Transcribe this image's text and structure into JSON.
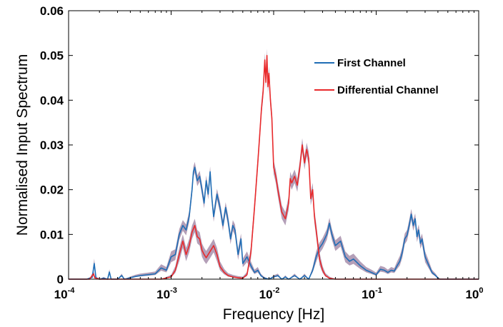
{
  "chart_data": {
    "type": "line",
    "title": "",
    "xlabel": "Frequency [Hz]",
    "ylabel": "Normalised Input Spectrum",
    "xscale": "log",
    "xlim": [
      0.0001,
      1
    ],
    "ylim": [
      0,
      0.06
    ],
    "grid": false,
    "legend_placement": "top-right",
    "x_ticks": [
      {
        "base": "10",
        "exp": "-4"
      },
      {
        "base": "10",
        "exp": "-3"
      },
      {
        "base": "10",
        "exp": "-2"
      },
      {
        "base": "10",
        "exp": "-1"
      },
      {
        "base": "10",
        "exp": "0"
      }
    ],
    "y_ticks": [
      "0",
      "0.01",
      "0.02",
      "0.03",
      "0.04",
      "0.05",
      "0.06"
    ],
    "band_color": "#9b7fa0",
    "series": [
      {
        "name": "First Channel",
        "color": "#1f6db5",
        "band_halfwidth": 0.0012,
        "x": [
          0.0001,
          0.00015,
          0.00017,
          0.000178,
          0.000185,
          0.0002,
          0.00022,
          0.00024,
          0.00025,
          0.00026,
          0.0003,
          0.00033,
          0.00035,
          0.0004,
          0.00045,
          0.0005,
          0.0006,
          0.0007,
          0.0008,
          0.0009,
          0.001,
          0.0011,
          0.0012,
          0.0013,
          0.0014,
          0.0015,
          0.0016,
          0.00165,
          0.0017,
          0.0018,
          0.0019,
          0.002,
          0.0021,
          0.0022,
          0.0023,
          0.0024,
          0.0025,
          0.0026,
          0.0028,
          0.003,
          0.0032,
          0.0034,
          0.0036,
          0.0038,
          0.004,
          0.0042,
          0.0045,
          0.0048,
          0.005,
          0.0055,
          0.006,
          0.0065,
          0.007,
          0.0075,
          0.008,
          0.009,
          0.01,
          0.011,
          0.012,
          0.013,
          0.014,
          0.016,
          0.018,
          0.02,
          0.022,
          0.024,
          0.026,
          0.028,
          0.03,
          0.033,
          0.035,
          0.037,
          0.04,
          0.045,
          0.05,
          0.055,
          0.06,
          0.07,
          0.08,
          0.09,
          0.1,
          0.11,
          0.12,
          0.13,
          0.14,
          0.15,
          0.16,
          0.17,
          0.18,
          0.19,
          0.2,
          0.21,
          0.22,
          0.23,
          0.24,
          0.25,
          0.26,
          0.27,
          0.28,
          0.3,
          0.32,
          0.35,
          0.38,
          0.4,
          0.42,
          0.45,
          0.5,
          0.6,
          1
        ],
        "y": [
          0,
          0,
          0.0004,
          0.0035,
          0.0003,
          0,
          0.0002,
          0,
          0.0016,
          0,
          0,
          0.0008,
          0,
          0.0003,
          0.0006,
          0.0008,
          0.001,
          0.0012,
          0.0025,
          0.002,
          0.005,
          0.0055,
          0.01,
          0.012,
          0.011,
          0.014,
          0.02,
          0.024,
          0.025,
          0.022,
          0.023,
          0.02,
          0.017,
          0.022,
          0.019,
          0.024,
          0.018,
          0.014,
          0.019,
          0.016,
          0.012,
          0.016,
          0.013,
          0.009,
          0.012,
          0.011,
          0.0055,
          0.009,
          0.0035,
          0.005,
          0.003,
          0.0015,
          0.002,
          0.0008,
          0.0003,
          0,
          0.0005,
          0.0008,
          0,
          0.0005,
          0,
          0.0008,
          0,
          0.0008,
          0,
          0.002,
          0.005,
          0.007,
          0.008,
          0.01,
          0.0125,
          0.01,
          0.0075,
          0.0085,
          0.005,
          0.004,
          0.0045,
          0.003,
          0.002,
          0.0015,
          0.001,
          0.0022,
          0.002,
          0.0015,
          0.002,
          0.0018,
          0.003,
          0.004,
          0.006,
          0.009,
          0.0098,
          0.012,
          0.0145,
          0.012,
          0.0135,
          0.0095,
          0.011,
          0.008,
          0.009,
          0.005,
          0.0035,
          0.0015,
          0.0008,
          0.0002,
          0,
          0,
          0,
          0,
          0
        ]
      },
      {
        "name": "Differential Channel",
        "color": "#e8292b",
        "band_halfwidth": 0.0015,
        "x": [
          0.0001,
          0.00016,
          0.00017,
          0.000175,
          0.00018,
          0.0002,
          0.0008,
          0.001,
          0.0011,
          0.0012,
          0.0013,
          0.0014,
          0.0015,
          0.0016,
          0.0017,
          0.0018,
          0.0019,
          0.002,
          0.0021,
          0.0022,
          0.0024,
          0.0026,
          0.0028,
          0.003,
          0.0033,
          0.0036,
          0.004,
          0.0045,
          0.005,
          0.0055,
          0.006,
          0.0065,
          0.007,
          0.0073,
          0.0076,
          0.0079,
          0.0082,
          0.0084,
          0.0086,
          0.0088,
          0.009,
          0.0093,
          0.0096,
          0.01,
          0.0105,
          0.011,
          0.012,
          0.013,
          0.014,
          0.0145,
          0.015,
          0.016,
          0.017,
          0.018,
          0.019,
          0.02,
          0.021,
          0.022,
          0.023,
          0.024,
          0.025,
          0.026,
          0.028,
          0.03,
          0.032,
          0.035,
          0.04,
          0.05,
          1
        ],
        "y": [
          0,
          0,
          0.0008,
          0.0012,
          0.0003,
          0,
          0,
          0.0005,
          0.002,
          0.0055,
          0.0085,
          0.0055,
          0.0075,
          0.0105,
          0.012,
          0.0095,
          0.009,
          0.0065,
          0.0055,
          0.0048,
          0.0062,
          0.0075,
          0.0055,
          0.0028,
          0.0015,
          0.0008,
          0.0005,
          0.0003,
          0.0002,
          0.001,
          0.006,
          0.016,
          0.026,
          0.032,
          0.038,
          0.042,
          0.049,
          0.044,
          0.05,
          0.043,
          0.046,
          0.04,
          0.036,
          0.025,
          0.023,
          0.02,
          0.015,
          0.0135,
          0.017,
          0.0225,
          0.0215,
          0.023,
          0.021,
          0.025,
          0.03,
          0.026,
          0.029,
          0.027,
          0.018,
          0.02,
          0.014,
          0.011,
          0.0045,
          0.002,
          0.0008,
          0.0002,
          0,
          0,
          0
        ]
      }
    ]
  }
}
